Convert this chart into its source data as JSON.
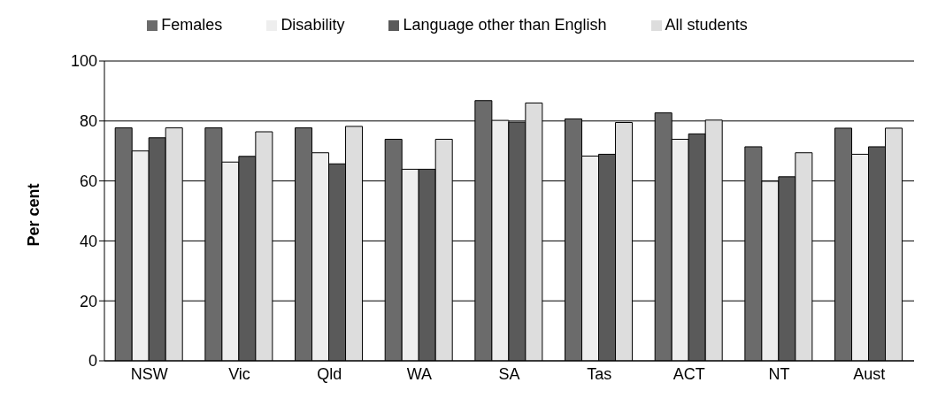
{
  "chart_data": {
    "type": "bar",
    "ylabel": "Per cent",
    "categories": [
      "NSW",
      "Vic",
      "Qld",
      "WA",
      "SA",
      "Tas",
      "ACT",
      "NT",
      "Aust"
    ],
    "series": [
      {
        "name": "Females",
        "color": "#6b6b6b",
        "values": [
          77.7,
          77.7,
          77.7,
          73.9,
          86.8,
          80.7,
          82.7,
          71.4,
          77.6
        ]
      },
      {
        "name": "Disability",
        "color": "#eeeeee",
        "values": [
          70.0,
          66.3,
          69.4,
          63.9,
          80.2,
          68.3,
          73.9,
          59.9,
          68.9
        ]
      },
      {
        "name": "Language other than English",
        "color": "#5a5a5a",
        "values": [
          74.4,
          68.2,
          65.7,
          63.9,
          79.6,
          68.9,
          75.7,
          61.4,
          71.4
        ]
      },
      {
        "name": "All students",
        "color": "#dddddd",
        "values": [
          77.7,
          76.4,
          78.2,
          73.9,
          86.0,
          79.5,
          80.3,
          69.4,
          77.6
        ]
      }
    ],
    "ylim": [
      0,
      100
    ],
    "yticks": [
      0,
      20,
      40,
      60,
      80,
      100
    ],
    "grid": "y",
    "legend": "top"
  }
}
